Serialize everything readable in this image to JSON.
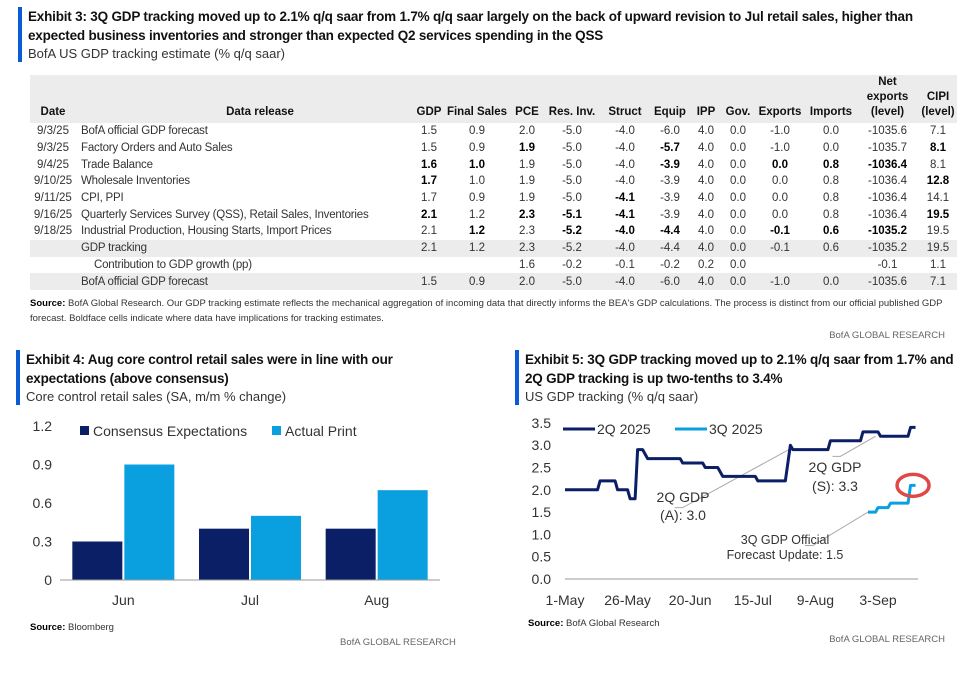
{
  "exhibit3": {
    "title": "Exhibit 3: 3Q GDP tracking moved up to 2.1% q/q saar from 1.7% q/q saar largely on the back of upward revision to Jul retail sales, higher than expected business inventories and stronger than expected Q2 services spending in the QSS",
    "subtitle": "BofA US GDP tracking estimate (% q/q saar)",
    "headers": [
      "Date",
      "Data release",
      "GDP",
      "Final Sales",
      "PCE",
      "Res. Inv.",
      "Struct",
      "Equip",
      "IPP",
      "Gov.",
      "Exports",
      "Imports",
      "Net exports (level)",
      "CIPI (level)"
    ],
    "rows": [
      {
        "date": "9/3/25",
        "release": "BofA official GDP forecast",
        "values": [
          "1.5",
          "0.9",
          "2.0",
          "-5.0",
          "-4.0",
          "-6.0",
          "4.0",
          "0.0",
          "-1.0",
          "0.0",
          "-1035.6",
          "7.1"
        ],
        "bold": []
      },
      {
        "date": "9/3/25",
        "release": "Factory Orders and Auto Sales",
        "values": [
          "1.5",
          "0.9",
          "1.9",
          "-5.0",
          "-4.0",
          "-5.7",
          "4.0",
          "0.0",
          "-1.0",
          "0.0",
          "-1035.7",
          "8.1"
        ],
        "bold": [
          2,
          5,
          11
        ]
      },
      {
        "date": "9/4/25",
        "release": "Trade Balance",
        "values": [
          "1.6",
          "1.0",
          "1.9",
          "-5.0",
          "-4.0",
          "-3.9",
          "4.0",
          "0.0",
          "0.0",
          "0.8",
          "-1036.4",
          "8.1"
        ],
        "bold": [
          0,
          1,
          5,
          8,
          9,
          10
        ]
      },
      {
        "date": "9/10/25",
        "release": "Wholesale Inventories",
        "values": [
          "1.7",
          "1.0",
          "1.9",
          "-5.0",
          "-4.0",
          "-3.9",
          "4.0",
          "0.0",
          "0.0",
          "0.8",
          "-1036.4",
          "12.8"
        ],
        "bold": [
          0,
          11
        ]
      },
      {
        "date": "9/11/25",
        "release": "CPI, PPI",
        "values": [
          "1.7",
          "0.9",
          "1.9",
          "-5.0",
          "-4.1",
          "-3.9",
          "4.0",
          "0.0",
          "0.0",
          "0.8",
          "-1036.4",
          "14.1"
        ],
        "bold": [
          4
        ]
      },
      {
        "date": "9/16/25",
        "release": "Quarterly Services Survey (QSS), Retail Sales, Inventories",
        "values": [
          "2.1",
          "1.2",
          "2.3",
          "-5.1",
          "-4.1",
          "-3.9",
          "4.0",
          "0.0",
          "0.0",
          "0.8",
          "-1036.4",
          "19.5"
        ],
        "bold": [
          0,
          2,
          3,
          4,
          11
        ]
      },
      {
        "date": "9/18/25",
        "release": "Industrial Production, Housing Starts, Import Prices",
        "values": [
          "2.1",
          "1.2",
          "2.3",
          "-5.2",
          "-4.0",
          "-4.4",
          "4.0",
          "0.0",
          "-0.1",
          "0.6",
          "-1035.2",
          "19.5"
        ],
        "bold": [
          1,
          3,
          4,
          5,
          8,
          9,
          10
        ]
      },
      {
        "date": "",
        "release": "GDP tracking",
        "values": [
          "2.1",
          "1.2",
          "2.3",
          "-5.2",
          "-4.0",
          "-4.4",
          "4.0",
          "0.0",
          "-0.1",
          "0.6",
          "-1035.2",
          "19.5"
        ],
        "bold": [],
        "style": "gray"
      },
      {
        "date": "",
        "release": "Contribution to GDP growth (pp)",
        "values": [
          "",
          "",
          "1.6",
          "-0.2",
          "-0.1",
          "-0.2",
          "0.2",
          "0.0",
          "",
          "",
          "-0.1",
          "1.1"
        ],
        "bold": [],
        "style": "indent"
      },
      {
        "date": "",
        "release": "BofA official GDP forecast",
        "values": [
          "1.5",
          "0.9",
          "2.0",
          "-5.0",
          "-4.0",
          "-6.0",
          "4.0",
          "0.0",
          "-1.0",
          "0.0",
          "-1035.6",
          "7.1"
        ],
        "bold": [],
        "style": "gray"
      }
    ],
    "source_label": "Source:",
    "source_text": "BofA Global Research. Our GDP tracking estimate reflects the mechanical aggregation of incoming data that directly informs the BEA's GDP calculations. The process is distinct from our official published GDP forecast. Boldface cells indicate where data have implications for tracking estimates.",
    "brand": "BofA GLOBAL RESEARCH"
  },
  "exhibit4": {
    "title": "Exhibit 4: Aug core control retail sales were in line with our expectations (above consensus)",
    "subtitle": "Core control retail sales (SA, m/m % change)",
    "source_label": "Source:",
    "source_text": "Bloomberg",
    "brand": "BofA GLOBAL RESEARCH"
  },
  "exhibit5": {
    "title": "Exhibit 5: 3Q GDP tracking moved up to 2.1% q/q saar from 1.7% and 2Q GDP tracking is up two-tenths to 3.4%",
    "subtitle": "US GDP tracking (% q/q saar)",
    "source_label": "Source:",
    "source_text": "BofA Global Research",
    "brand": "BofA GLOBAL RESEARCH"
  },
  "chart_data": [
    {
      "type": "bar",
      "title": "Core control retail sales",
      "categories": [
        "Jun",
        "Jul",
        "Aug"
      ],
      "series": [
        {
          "name": "Consensus Expectations",
          "color": "#0b1f66",
          "values": [
            0.3,
            0.4,
            0.4
          ]
        },
        {
          "name": "Actual Print",
          "color": "#0aa0e0",
          "values": [
            0.9,
            0.5,
            0.7
          ]
        }
      ],
      "ylim": [
        0,
        1.2
      ],
      "yticks": [
        "0",
        "0.3",
        "0.6",
        "0.9",
        "1.2"
      ],
      "legend": "top"
    },
    {
      "type": "line",
      "title": "US GDP tracking",
      "xlabel_unit": "days since 1-May",
      "xticks": [
        {
          "day": 0,
          "label": "1-May"
        },
        {
          "day": 25,
          "label": "26-May"
        },
        {
          "day": 50,
          "label": "20-Jun"
        },
        {
          "day": 75,
          "label": "15-Jul"
        },
        {
          "day": 100,
          "label": "9-Aug"
        },
        {
          "day": 125,
          "label": "3-Sep"
        }
      ],
      "ylim": [
        0,
        3.5
      ],
      "yticks": [
        "0.0",
        "0.5",
        "1.0",
        "1.5",
        "2.0",
        "2.5",
        "3.0",
        "3.5"
      ],
      "legend": "top-left",
      "series": [
        {
          "name": "2Q 2025",
          "color": "#0b1f66",
          "points": [
            [
              0,
              2.0
            ],
            [
              13,
              2.0
            ],
            [
              14,
              2.2
            ],
            [
              20,
              2.2
            ],
            [
              21,
              2.0
            ],
            [
              25,
              2.0
            ],
            [
              26,
              1.8
            ],
            [
              28,
              1.8
            ],
            [
              29,
              2.9
            ],
            [
              31,
              2.9
            ],
            [
              32,
              2.8
            ],
            [
              33,
              2.7
            ],
            [
              46,
              2.7
            ],
            [
              47,
              2.6
            ],
            [
              55,
              2.6
            ],
            [
              56,
              2.5
            ],
            [
              61,
              2.5
            ],
            [
              63,
              2.3
            ],
            [
              76,
              2.3
            ],
            [
              77,
              2.2
            ],
            [
              88,
              2.2
            ],
            [
              90,
              3.0
            ],
            [
              91,
              2.9
            ],
            [
              105,
              2.9
            ],
            [
              106,
              3.1
            ],
            [
              118,
              3.1
            ],
            [
              119,
              3.3
            ],
            [
              125,
              3.3
            ],
            [
              126,
              3.2
            ],
            [
              137,
              3.2
            ],
            [
              138,
              3.4
            ],
            [
              140,
              3.4
            ]
          ]
        },
        {
          "name": "3Q 2025",
          "color": "#0aa0e0",
          "points": [
            [
              121,
              1.5
            ],
            [
              124,
              1.5
            ],
            [
              125,
              1.6
            ],
            [
              129,
              1.6
            ],
            [
              130,
              1.7
            ],
            [
              137,
              1.7
            ],
            [
              138,
              2.1
            ],
            [
              140,
              2.1
            ]
          ]
        }
      ],
      "annotations": [
        {
          "text": [
            "2Q GDP",
            "(A): 3.0"
          ]
        },
        {
          "text": [
            "2Q GDP",
            "(S): 3.3"
          ]
        },
        {
          "text": [
            "3Q GDP Official",
            "Forecast Update: 1.5"
          ]
        }
      ]
    }
  ]
}
